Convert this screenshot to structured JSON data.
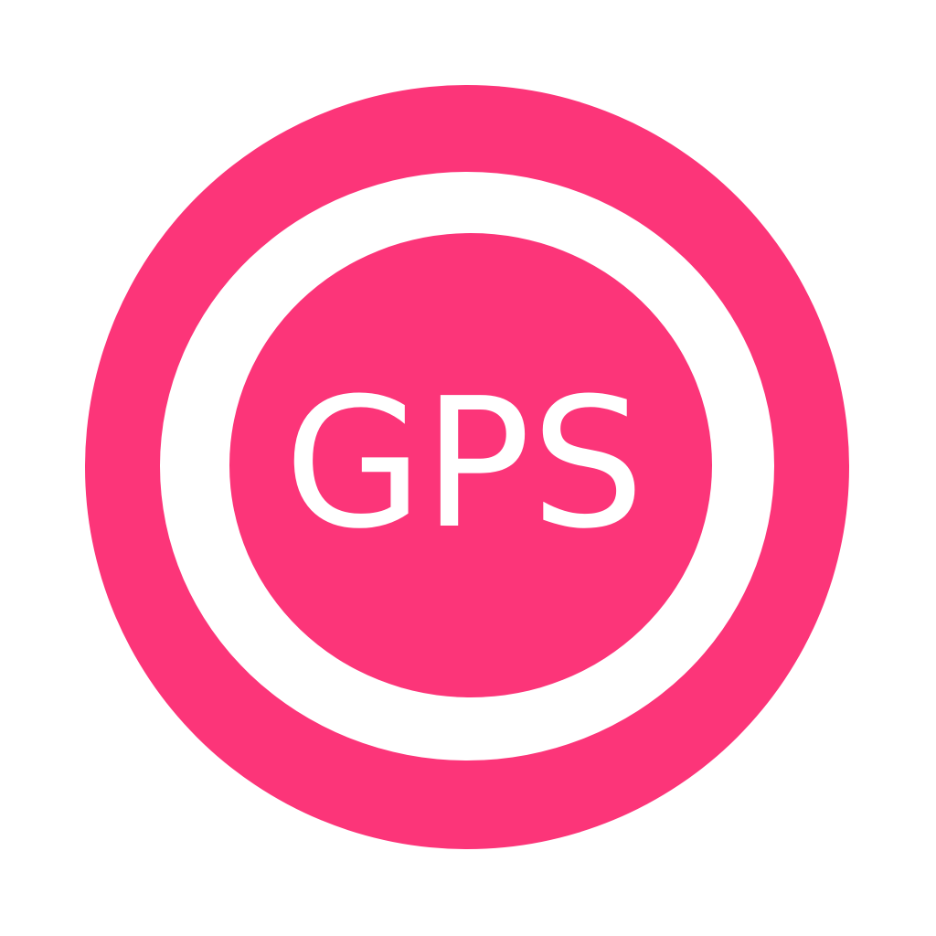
{
  "icon": {
    "name": "gps-target-icon",
    "label": "GPS",
    "colors": {
      "ring": "#FC3579",
      "gap": "#FFFFFF",
      "core": "#FC3579",
      "text": "#FFFFFF",
      "background": "#FFFFFF"
    }
  }
}
